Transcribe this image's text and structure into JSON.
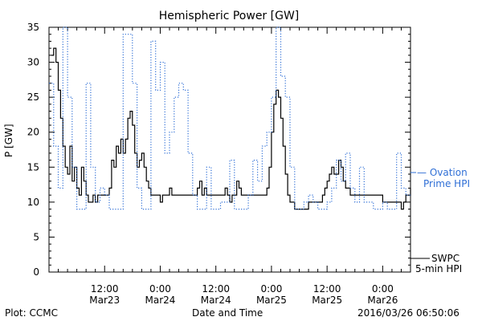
{
  "chart_data": {
    "type": "line",
    "title": "Hemispheric Power [GW]",
    "xlabel": "Date and Time",
    "ylabel": "P [GW]",
    "ylim": [
      0,
      35
    ],
    "yticks": [
      0,
      5,
      10,
      15,
      20,
      25,
      30,
      35
    ],
    "xticks": [
      {
        "t": 12,
        "time": "12:00",
        "date": "Mar23"
      },
      {
        "t": 24,
        "time": "0:00",
        "date": "Mar24"
      },
      {
        "t": 36,
        "time": "12:00",
        "date": "Mar24"
      },
      {
        "t": 48,
        "time": "0:00",
        "date": "Mar25"
      },
      {
        "t": 60,
        "time": "12:00",
        "date": "Mar25"
      },
      {
        "t": 72,
        "time": "0:00",
        "date": "Mar26"
      }
    ],
    "grid": false,
    "series": [
      {
        "name": "SWPC 5-min HPI",
        "style": "solid",
        "color": "#000000",
        "x": [
          0.5,
          1.0,
          1.5,
          2.0,
          2.5,
          3.0,
          3.5,
          4.0,
          4.5,
          5.0,
          5.5,
          6.0,
          6.5,
          7.0,
          7.5,
          8.0,
          8.5,
          9.0,
          9.5,
          10.0,
          10.5,
          11.0,
          11.5,
          12.0,
          12.5,
          13.0,
          13.5,
          14.0,
          14.5,
          15.0,
          15.5,
          16.0,
          16.5,
          17.0,
          17.5,
          18.0,
          18.5,
          19.0,
          19.5,
          20.0,
          20.5,
          21.0,
          21.5,
          22.0,
          22.5,
          23.0,
          23.5,
          24.0,
          24.5,
          25.0,
          25.5,
          26.0,
          26.5,
          27.0,
          27.5,
          28.0,
          28.5,
          29.0,
          29.5,
          30.0,
          30.5,
          31.0,
          31.5,
          32.0,
          32.5,
          33.0,
          33.5,
          34.0,
          35.0,
          36.0,
          37.0,
          38.0,
          38.5,
          39.0,
          39.5,
          40.0,
          40.5,
          41.0,
          41.5,
          42.0,
          43.0,
          44.0,
          45.0,
          46.0,
          46.5,
          47.0,
          47.5,
          48.0,
          48.5,
          49.0,
          49.5,
          50.0,
          50.5,
          51.0,
          51.5,
          52.0,
          52.5,
          53.0,
          53.5,
          54.0,
          55.0,
          56.0,
          57.0,
          58.0,
          59.0,
          59.5,
          60.0,
          60.5,
          61.0,
          61.5,
          62.0,
          62.5,
          63.0,
          63.5,
          64.0,
          65.0,
          66.0,
          67.0,
          68.0,
          69.0,
          70.0,
          71.0,
          72.0,
          73.0,
          74.0,
          75.0,
          75.5,
          76.0,
          76.5,
          77.0,
          77.5,
          78.0
        ],
        "y": [
          31,
          32,
          30,
          26,
          22,
          18,
          15,
          14,
          18,
          13,
          15,
          12,
          11,
          15,
          13,
          11,
          10,
          10,
          11,
          10,
          11,
          11,
          11,
          11,
          11,
          12,
          16,
          15,
          18,
          17,
          19,
          17,
          19,
          22,
          23,
          21,
          17,
          15,
          16,
          17,
          15,
          13,
          12,
          11,
          11,
          11,
          11,
          10,
          11,
          11,
          11,
          12,
          11,
          11,
          11,
          11,
          11,
          11,
          11,
          11,
          11,
          11,
          11,
          12,
          13,
          11,
          12,
          11,
          11,
          11,
          11,
          12,
          11,
          10,
          11,
          11,
          13,
          12,
          11,
          11,
          11,
          11,
          11,
          11,
          11,
          12,
          15,
          20,
          24,
          26,
          25,
          22,
          18,
          14,
          11,
          10,
          10,
          9,
          9,
          9,
          9,
          10,
          10,
          10,
          11,
          12,
          13,
          14,
          15,
          14,
          14,
          16,
          15,
          13,
          12,
          11,
          11,
          11,
          11,
          11,
          11,
          11,
          10,
          10,
          10,
          10,
          10,
          9,
          10,
          11,
          11,
          12
        ]
      },
      {
        "name": "Ovation Prime HPI",
        "style": "dotted",
        "color": "#2f6fd6",
        "x": [
          0.0,
          1.0,
          2.0,
          3.0,
          4.0,
          5.0,
          6.0,
          7.0,
          8.0,
          9.0,
          10.0,
          11.0,
          12.0,
          13.0,
          14.0,
          15.0,
          16.0,
          17.0,
          18.0,
          19.0,
          20.0,
          21.0,
          22.0,
          23.0,
          24.0,
          25.0,
          26.0,
          27.0,
          28.0,
          29.0,
          30.0,
          31.0,
          32.0,
          33.0,
          34.0,
          35.0,
          36.0,
          37.0,
          38.0,
          39.0,
          40.0,
          41.0,
          42.0,
          43.0,
          44.0,
          45.0,
          46.0,
          47.0,
          48.0,
          49.0,
          50.0,
          51.0,
          52.0,
          53.0,
          54.0,
          55.0,
          56.0,
          57.0,
          58.0,
          59.0,
          60.0,
          61.0,
          62.0,
          63.0,
          64.0,
          65.0,
          66.0,
          67.0,
          68.0,
          69.0,
          70.0,
          71.0,
          72.0,
          73.0,
          74.0,
          75.0,
          76.0,
          77.0,
          78.0
        ],
        "y": [
          27,
          18,
          12,
          35,
          25,
          15,
          9,
          9,
          27,
          15,
          10,
          12,
          11,
          9,
          9,
          9,
          34,
          34,
          27,
          12,
          9,
          9,
          33,
          26,
          30,
          17,
          20,
          25,
          27,
          26,
          17,
          11,
          9,
          9,
          15,
          9,
          9,
          10,
          10,
          16,
          9,
          9,
          9,
          11,
          16,
          13,
          18,
          20,
          25,
          35,
          28,
          25,
          15,
          9,
          9,
          10,
          11,
          10,
          9,
          9,
          10,
          12,
          16,
          13,
          17,
          12,
          10,
          15,
          10,
          10,
          9,
          9,
          10,
          9,
          9,
          17,
          12,
          11,
          11
        ]
      }
    ]
  },
  "title": "Hemispheric Power [GW]",
  "xlabel": "Date and Time",
  "ylabel": "P [GW]",
  "legend": {
    "ovation_line1": "— Ovation",
    "ovation_line2": "Prime HPI",
    "swpc_line1": "SWPC",
    "swpc_line2": "5-min HPI"
  },
  "footer": {
    "left": "Plot: CCMC",
    "center": "Date and Time",
    "right": "2016/03/26 06:50:06"
  },
  "colors": {
    "ovation": "#2f6fd6",
    "swpc": "#000000"
  }
}
